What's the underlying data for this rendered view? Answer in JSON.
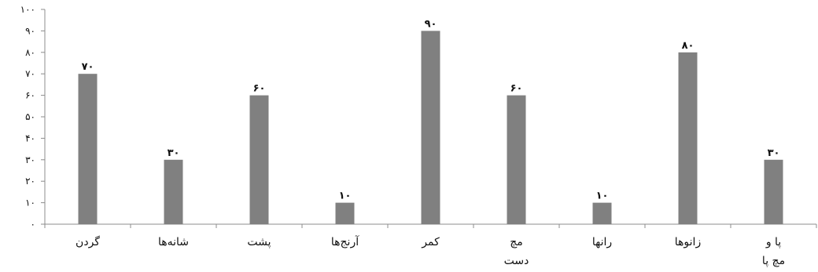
{
  "chart_data": {
    "type": "bar",
    "categories": [
      [
        "گردن"
      ],
      [
        "شانه‌ها"
      ],
      [
        "پشت"
      ],
      [
        "آرنج‌ها"
      ],
      [
        "کمر"
      ],
      [
        "مچ",
        "دست"
      ],
      [
        "رانها"
      ],
      [
        "زانوها"
      ],
      [
        "پا و",
        "مچ پا"
      ]
    ],
    "values": [
      70,
      30,
      60,
      10,
      90,
      60,
      10,
      80,
      30
    ],
    "value_labels": [
      "۷۰",
      "۳۰",
      "۶۰",
      "۱۰",
      "۹۰",
      "۶۰",
      "۱۰",
      "۸۰",
      "۳۰"
    ],
    "y_ticks": [
      0,
      10,
      20,
      30,
      40,
      50,
      60,
      70,
      80,
      90,
      100
    ],
    "y_tick_labels": [
      "۰",
      "۱۰",
      "۲۰",
      "۳۰",
      "۴۰",
      "۵۰",
      "۶۰",
      "۷۰",
      "۸۰",
      "۹۰",
      "۱۰۰"
    ],
    "ylim": [
      0,
      100
    ],
    "grid": false,
    "legend": "none",
    "bar_color": "#808080",
    "axis_color": "#8c8c8c"
  }
}
